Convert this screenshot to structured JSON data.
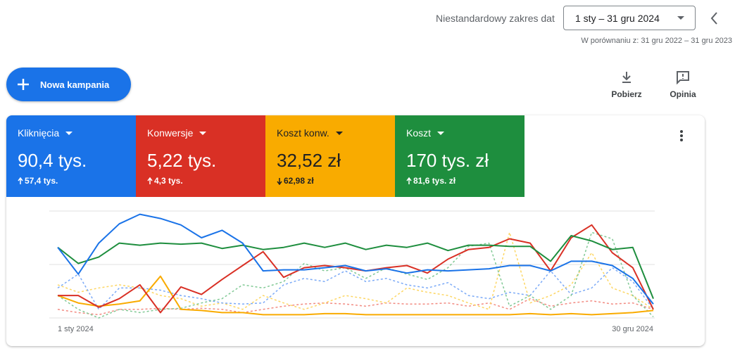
{
  "header": {
    "date_range_label": "Niestandardowy zakres dat",
    "date_range": "1 sty – 31 gru 2024",
    "comparison": "W porównaniu z: 31 gru 2022 – 31 gru 2023"
  },
  "toolbar": {
    "new_campaign": "Nowa kampania",
    "download": "Pobierz",
    "feedback": "Opinia"
  },
  "metrics": [
    {
      "name": "Kliknięcia",
      "value": "90,4 tys.",
      "change": "57,4 tys.",
      "trend": "up",
      "color": "#1a73e8",
      "text_color": "#ffffff"
    },
    {
      "name": "Konwersje",
      "value": "5,22 tys.",
      "change": "4,3 tys.",
      "trend": "up",
      "color": "#d93025",
      "text_color": "#ffffff"
    },
    {
      "name": "Koszt konw.",
      "value": "32,52 zł",
      "change": "62,98 zł",
      "trend": "down",
      "color": "#f9ab00",
      "text_color": "#202124"
    },
    {
      "name": "Koszt",
      "value": "170 tys. zł",
      "change": "81,6 tys. zł",
      "trend": "up",
      "color": "#1e8e3e",
      "text_color": "#ffffff"
    }
  ],
  "chart_data": {
    "type": "line",
    "x_start": "1 sty 2024",
    "x_end": "30 gru 2024",
    "ylim": [
      0,
      100
    ],
    "series": [
      {
        "color": "#f28b82",
        "dashed": true,
        "values": [
          8,
          5,
          3,
          8,
          8,
          9,
          8,
          9,
          8,
          5,
          8,
          11,
          13,
          14,
          13,
          11,
          14,
          13,
          13,
          14,
          11,
          14,
          8,
          18,
          11,
          14,
          16,
          13,
          14,
          8
        ]
      },
      {
        "color": "#fdd663",
        "dashed": true,
        "values": [
          31,
          24,
          28,
          31,
          28,
          21,
          18,
          11,
          14,
          8,
          21,
          14,
          8,
          14,
          21,
          18,
          14,
          28,
          24,
          21,
          14,
          8,
          80,
          14,
          21,
          31,
          61,
          28,
          21,
          8
        ]
      },
      {
        "color": "#7baaf7",
        "dashed": true,
        "values": [
          28,
          41,
          8,
          28,
          28,
          26,
          21,
          18,
          14,
          13,
          14,
          31,
          37,
          34,
          44,
          34,
          37,
          31,
          28,
          33,
          21,
          18,
          24,
          21,
          44,
          22,
          28,
          47,
          34,
          8
        ]
      },
      {
        "color": "#81c995",
        "dashed": true,
        "values": [
          21,
          8,
          0,
          8,
          5,
          8,
          9,
          14,
          18,
          31,
          28,
          34,
          51,
          44,
          47,
          37,
          47,
          41,
          36,
          47,
          67,
          70,
          11,
          21,
          8,
          21,
          80,
          74,
          21,
          1
        ]
      },
      {
        "color": "#f9ab00",
        "dashed": false,
        "values": [
          21,
          14,
          11,
          13,
          16,
          39,
          8,
          7,
          5,
          5,
          3,
          3,
          3,
          4,
          4,
          3,
          3,
          3,
          3,
          3,
          3,
          3,
          3,
          4,
          3,
          4,
          3,
          4,
          5,
          7
        ]
      },
      {
        "color": "#d93025",
        "dashed": false,
        "values": [
          21,
          21,
          10,
          18,
          31,
          5,
          29,
          22,
          36,
          49,
          62,
          38,
          47,
          49,
          47,
          44,
          47,
          49,
          42,
          55,
          64,
          66,
          74,
          70,
          44,
          75,
          87,
          61,
          47,
          8
        ]
      },
      {
        "color": "#1e8e3e",
        "dashed": false,
        "values": [
          66,
          51,
          57,
          70,
          68,
          70,
          69,
          70,
          65,
          68,
          64,
          66,
          70,
          66,
          70,
          64,
          68,
          66,
          70,
          63,
          68,
          68,
          67,
          67,
          53,
          77,
          72,
          64,
          66,
          18
        ]
      },
      {
        "color": "#1a73e8",
        "dashed": false,
        "values": [
          66,
          41,
          70,
          88,
          97,
          93,
          87,
          75,
          82,
          70,
          44,
          45,
          45,
          47,
          49,
          44,
          46,
          42,
          45,
          44,
          45,
          46,
          49,
          49,
          44,
          53,
          53,
          49,
          37,
          13
        ]
      }
    ]
  }
}
